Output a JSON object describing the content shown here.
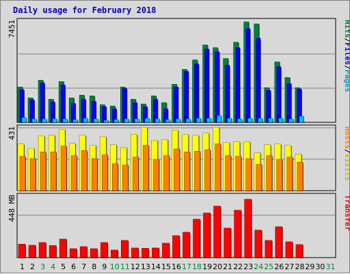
{
  "title": "Daily usage for February 2018",
  "chart_data": [
    {
      "type": "bar",
      "panel": "hits-files-pages",
      "y_max_label": "7451",
      "ylim": [
        0,
        7451
      ],
      "legend": [
        {
          "name": "Hits",
          "color": "#008040"
        },
        {
          "name": "Files",
          "color": "#0000ff"
        },
        {
          "name": "Pages",
          "color": "#00c0ff"
        }
      ],
      "x": [
        1,
        2,
        3,
        4,
        5,
        6,
        7,
        8,
        9,
        10,
        11,
        12,
        13,
        14,
        15,
        16,
        17,
        18,
        19,
        20,
        21,
        22,
        23,
        24,
        25,
        26,
        27,
        28
      ],
      "series": [
        {
          "name": "Hits",
          "values": [
            2600,
            1800,
            3100,
            1700,
            3000,
            1800,
            2000,
            1950,
            1300,
            1200,
            2600,
            1700,
            1350,
            1950,
            1450,
            2800,
            3900,
            4600,
            5700,
            5500,
            4700,
            5900,
            7400,
            7250,
            2550,
            4450,
            3300,
            2550
          ]
        },
        {
          "name": "Files",
          "values": [
            2400,
            1650,
            2900,
            1500,
            2750,
            1400,
            1700,
            1550,
            1150,
            1000,
            2500,
            1450,
            1150,
            1700,
            1000,
            2600,
            3750,
            4300,
            5400,
            5200,
            4200,
            5500,
            6900,
            6200,
            2350,
            4100,
            2850,
            2450
          ]
        },
        {
          "name": "Pages",
          "values": [
            350,
            250,
            250,
            250,
            250,
            200,
            300,
            250,
            150,
            200,
            250,
            250,
            300,
            250,
            200,
            250,
            250,
            300,
            300,
            500,
            300,
            250,
            300,
            300,
            300,
            300,
            250,
            450
          ]
        }
      ]
    },
    {
      "type": "bar",
      "panel": "visits-hosts",
      "y_max_label": "431",
      "ylim": [
        0,
        431
      ],
      "legend": [
        {
          "name": "Hosts",
          "color": "#ff8000"
        },
        {
          "name": "Visits",
          "color": "#ffff00"
        }
      ],
      "x": [
        1,
        2,
        3,
        4,
        5,
        6,
        7,
        8,
        9,
        10,
        11,
        12,
        13,
        14,
        15,
        16,
        17,
        18,
        19,
        20,
        21,
        22,
        23,
        24,
        25,
        26,
        27,
        28
      ],
      "series": [
        {
          "name": "Visits",
          "values": [
            320,
            290,
            375,
            380,
            420,
            325,
            380,
            310,
            370,
            315,
            295,
            385,
            435,
            345,
            350,
            415,
            385,
            380,
            395,
            435,
            330,
            335,
            335,
            260,
            315,
            320,
            310,
            250
          ]
        },
        {
          "name": "Hosts",
          "values": [
            235,
            220,
            265,
            265,
            305,
            240,
            275,
            220,
            245,
            185,
            175,
            230,
            310,
            215,
            240,
            285,
            265,
            270,
            280,
            320,
            240,
            235,
            220,
            180,
            240,
            215,
            230,
            195
          ]
        }
      ]
    },
    {
      "type": "bar",
      "panel": "transfer",
      "y_max_label": "448 MB",
      "ylim": [
        0,
        448
      ],
      "legend": [
        {
          "name": "Transfer",
          "color": "#ff0000"
        }
      ],
      "x": [
        1,
        2,
        3,
        4,
        5,
        6,
        7,
        8,
        9,
        10,
        11,
        12,
        13,
        14,
        15,
        16,
        17,
        18,
        19,
        20,
        21,
        22,
        23,
        24,
        25,
        26,
        27,
        28
      ],
      "series": [
        {
          "name": "Transfer",
          "values": [
            98,
            90,
            110,
            88,
            135,
            65,
            80,
            65,
            110,
            55,
            125,
            70,
            68,
            70,
            105,
            160,
            185,
            280,
            325,
            375,
            215,
            345,
            425,
            200,
            125,
            225,
            115,
            95
          ]
        }
      ]
    }
  ],
  "x_axis": {
    "labels": [
      "1",
      "2",
      "3",
      "4",
      "5",
      "6",
      "7",
      "8",
      "9",
      "10",
      "11",
      "12",
      "13",
      "14",
      "15",
      "16",
      "17",
      "18",
      "19",
      "20",
      "21",
      "22",
      "23",
      "24",
      "25",
      "26",
      "27",
      "28",
      "29",
      "30",
      "31"
    ],
    "weekend_days": [
      3,
      4,
      10,
      11,
      17,
      18,
      24,
      25,
      31
    ]
  },
  "colors": {
    "hits": "#008040",
    "files": "#0000ff",
    "pages": "#00c0ff",
    "visits": "#ffff00",
    "hosts": "#ff8000",
    "transfer": "#ff0000",
    "weekday_label": "#000000",
    "weekend_label": "#008040"
  }
}
